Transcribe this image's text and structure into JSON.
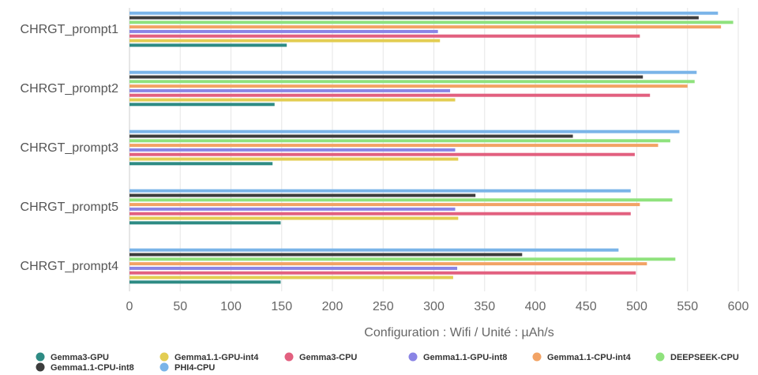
{
  "chart_data": {
    "type": "bar",
    "orientation": "horizontal",
    "categories": [
      "CHRGT_prompt1",
      "CHRGT_prompt2",
      "CHRGT_prompt3",
      "CHRGT_prompt5",
      "CHRGT_prompt4"
    ],
    "xlabel": "Configuration : Wifi / Unité : µAh/s",
    "xlim": [
      0,
      600
    ],
    "xticks": [
      0,
      50,
      100,
      150,
      200,
      250,
      300,
      350,
      400,
      450,
      500,
      550,
      600
    ],
    "grid": true,
    "legend_position": "bottom",
    "series": [
      {
        "name": "Gemma3-GPU",
        "color": "#2e8b84",
        "values": [
          155,
          143,
          141,
          149,
          149
        ]
      },
      {
        "name": "Gemma1.1-GPU-int4",
        "color": "#e3cd52",
        "values": [
          306,
          321,
          324,
          324,
          319
        ]
      },
      {
        "name": "Gemma3-CPU",
        "color": "#e2607f",
        "values": [
          503,
          513,
          498,
          494,
          499
        ]
      },
      {
        "name": "Gemma1.1-GPU-int8",
        "color": "#8a84e5",
        "values": [
          304,
          316,
          321,
          321,
          323
        ]
      },
      {
        "name": "Gemma1.1-CPU-int4",
        "color": "#f2a365",
        "values": [
          583,
          550,
          521,
          503,
          510
        ]
      },
      {
        "name": "DEEPSEEK-CPU",
        "color": "#8fe27d",
        "values": [
          595,
          557,
          533,
          535,
          538
        ]
      },
      {
        "name": "Gemma1.1-CPU-int8",
        "color": "#3d3d3d",
        "values": [
          561,
          506,
          437,
          341,
          387
        ]
      },
      {
        "name": "PHI4-CPU",
        "color": "#7ab4e8",
        "values": [
          580,
          559,
          542,
          494,
          482
        ]
      }
    ]
  }
}
